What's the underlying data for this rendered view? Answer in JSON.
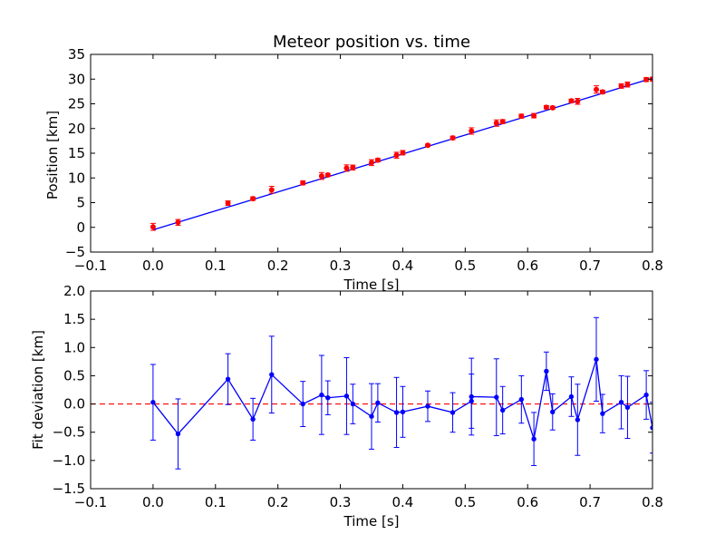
{
  "chart_data": [
    {
      "type": "scatter",
      "title": "Meteor position vs. time",
      "xlabel": "Time [s]",
      "ylabel": "Position [km]",
      "xlim": [
        -0.1,
        0.8
      ],
      "ylim": [
        -5,
        35
      ],
      "xticks": [
        "−0.1",
        "0.0",
        "0.1",
        "0.2",
        "0.3",
        "0.4",
        "0.5",
        "0.6",
        "0.7",
        "0.8"
      ],
      "xtick_values": [
        -0.1,
        0.0,
        0.1,
        0.2,
        0.3,
        0.4,
        0.5,
        0.6,
        0.7,
        0.8
      ],
      "yticks": [
        "−5",
        "0",
        "5",
        "10",
        "15",
        "20",
        "25",
        "30",
        "35"
      ],
      "ytick_values": [
        -5,
        0,
        5,
        10,
        15,
        20,
        25,
        30,
        35
      ],
      "colors": {
        "points": "#ff0000",
        "fit": "#0000ff"
      },
      "series": [
        {
          "kind": "errorbar-points",
          "x": [
            0.0,
            0.04,
            0.12,
            0.16,
            0.19,
            0.24,
            0.27,
            0.28,
            0.31,
            0.32,
            0.35,
            0.36,
            0.39,
            0.4,
            0.44,
            0.48,
            0.51,
            0.55,
            0.56,
            0.59,
            0.61,
            0.63,
            0.64,
            0.67,
            0.68,
            0.71,
            0.72,
            0.75,
            0.76,
            0.79,
            0.8
          ],
          "y": [
            0.1,
            1.0,
            4.9,
            5.8,
            7.6,
            9.0,
            10.4,
            10.6,
            12.0,
            12.1,
            13.1,
            13.6,
            14.6,
            15.1,
            16.6,
            18.1,
            19.5,
            21.1,
            21.4,
            22.5,
            22.6,
            24.3,
            24.2,
            25.6,
            25.5,
            27.9,
            27.4,
            28.6,
            28.9,
            29.9,
            30.0
          ],
          "yerr": [
            0.7,
            0.6,
            0.45,
            0.35,
            0.7,
            0.4,
            0.7,
            0.3,
            0.65,
            0.5,
            0.6,
            0.35,
            0.6,
            0.45,
            0.25,
            0.35,
            0.65,
            0.65,
            0.4,
            0.4,
            0.45,
            0.35,
            0.3,
            0.35,
            0.6,
            0.75,
            0.35,
            0.45,
            0.5,
            0.4,
            0.4
          ]
        },
        {
          "kind": "fit-line",
          "x": [
            0.0,
            0.8
          ],
          "y": [
            -0.5,
            30.2
          ]
        }
      ]
    },
    {
      "type": "line",
      "xlabel": "Time [s]",
      "ylabel": "Fit deviation [km]",
      "xlim": [
        -0.1,
        0.8
      ],
      "ylim": [
        -1.5,
        2.0
      ],
      "xticks": [
        "−0.1",
        "0.0",
        "0.1",
        "0.2",
        "0.3",
        "0.4",
        "0.5",
        "0.6",
        "0.7",
        "0.8"
      ],
      "xtick_values": [
        -0.1,
        0.0,
        0.1,
        0.2,
        0.3,
        0.4,
        0.5,
        0.6,
        0.7,
        0.8
      ],
      "yticks": [
        "−1.5",
        "−1.0",
        "−0.5",
        "0.0",
        "0.5",
        "1.0",
        "1.5",
        "2.0"
      ],
      "ytick_values": [
        -1.5,
        -1.0,
        -0.5,
        0.0,
        0.5,
        1.0,
        1.5,
        2.0
      ],
      "colors": {
        "series": "#0000ff",
        "zero": "#ff0000"
      },
      "zero_line": 0.0,
      "series": [
        {
          "kind": "errorbar-line",
          "x": [
            0.0,
            0.04,
            0.12,
            0.16,
            0.19,
            0.24,
            0.27,
            0.28,
            0.31,
            0.32,
            0.35,
            0.36,
            0.39,
            0.4,
            0.44,
            0.48,
            0.51,
            0.51,
            0.55,
            0.56,
            0.59,
            0.61,
            0.63,
            0.64,
            0.67,
            0.68,
            0.71,
            0.72,
            0.75,
            0.76,
            0.79,
            0.8
          ],
          "y": [
            0.03,
            -0.53,
            0.44,
            -0.27,
            0.52,
            0.0,
            0.16,
            0.11,
            0.14,
            0.0,
            -0.22,
            0.02,
            -0.15,
            -0.14,
            -0.04,
            -0.15,
            0.05,
            0.13,
            0.12,
            -0.11,
            0.08,
            -0.62,
            0.58,
            -0.14,
            0.13,
            -0.28,
            0.79,
            -0.17,
            0.03,
            -0.06,
            0.16,
            -0.42
          ],
          "yerr": [
            0.67,
            0.62,
            0.45,
            0.37,
            0.68,
            0.4,
            0.7,
            0.3,
            0.68,
            0.35,
            0.58,
            0.34,
            0.62,
            0.45,
            0.27,
            0.35,
            0.48,
            0.68,
            0.68,
            0.42,
            0.42,
            0.47,
            0.34,
            0.32,
            0.35,
            0.63,
            0.74,
            0.34,
            0.47,
            0.55,
            0.43,
            0.45
          ]
        }
      ]
    }
  ]
}
